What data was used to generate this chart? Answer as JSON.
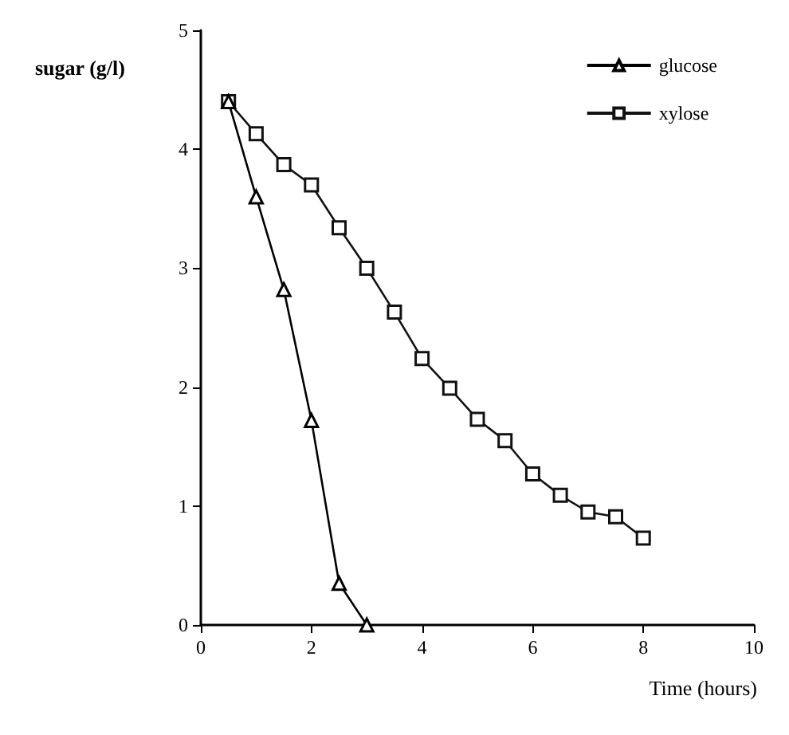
{
  "chart_data": {
    "type": "line",
    "xlabel": "Time (hours)",
    "ylabel": "sugar (g/l)",
    "xlim": [
      0,
      10
    ],
    "xticks": [
      0,
      2,
      4,
      6,
      8,
      10
    ],
    "ylim": [
      0,
      5
    ],
    "yticks": [
      0,
      1,
      2,
      3,
      4,
      5
    ],
    "legend": "top right",
    "grid": false,
    "line_style": "solid",
    "series": [
      {
        "name": "glucose",
        "color": "#000000",
        "marker": "triangle",
        "x": [
          0.5,
          1,
          1.5,
          2,
          2.5,
          3
        ],
        "values": [
          4.4,
          3.6,
          2.82,
          1.72,
          0.35,
          0
        ]
      },
      {
        "name": "xylose",
        "color": "#111111",
        "marker": "square",
        "x": [
          0.5,
          1,
          1.5,
          2,
          2.5,
          3,
          3.5,
          4,
          4.5,
          5,
          5.5,
          6,
          6.5,
          7,
          7.5,
          8
        ],
        "values": [
          4.4,
          4.13,
          3.87,
          3.7,
          3.34,
          3.0,
          2.63,
          2.24,
          1.99,
          1.73,
          1.55,
          1.27,
          1.09,
          0.95,
          0.91,
          0.73
        ]
      }
    ]
  }
}
